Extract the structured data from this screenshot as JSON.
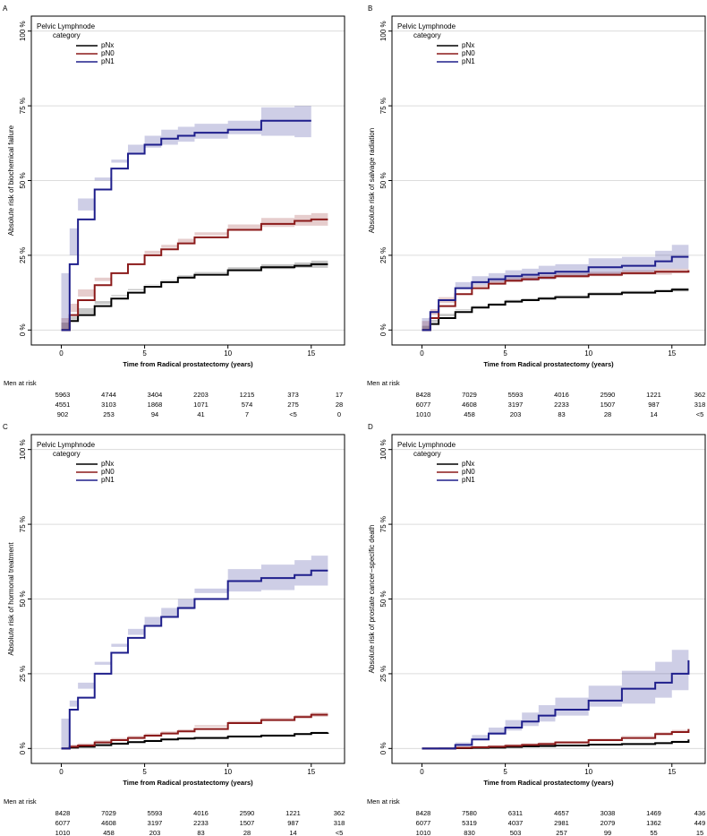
{
  "chart_data": [
    {
      "type": "line",
      "panel": "A",
      "ylabel": "Absolute risk of biochemical failure",
      "xlabel": "Time from Radical prostatectomy (years)",
      "legend_title": [
        "Pelvic Lymphnode",
        "category"
      ],
      "legend": "top-left",
      "grid": true,
      "step": true,
      "xlim": [
        -1.8,
        17
      ],
      "ylim": [
        -5,
        105
      ],
      "xticks": [
        0,
        5,
        10,
        15
      ],
      "yticks": [
        {
          "value": 0,
          "label": "0 %"
        },
        {
          "value": 25,
          "label": "25 %"
        },
        {
          "value": 50,
          "label": "50 %"
        },
        {
          "value": 75,
          "label": "75 %"
        },
        {
          "value": 100,
          "label": "100 %"
        }
      ],
      "x": [
        0,
        0.5,
        1,
        2,
        3,
        4,
        5,
        6,
        7,
        8,
        10,
        12,
        14,
        15,
        16
      ],
      "series": [
        {
          "name": "pNx",
          "color": "#000000",
          "values": [
            0,
            3,
            5,
            8,
            10.5,
            12.5,
            14.5,
            16,
            17.5,
            18.5,
            20,
            21,
            21.5,
            22,
            22
          ],
          "lower": [
            0,
            2.5,
            4.5,
            7.3,
            9.7,
            11.7,
            13.7,
            15.2,
            16.7,
            17.6,
            19,
            20,
            20.4,
            20.8,
            20.8
          ],
          "upper": [
            0,
            3.5,
            5.5,
            8.7,
            11.3,
            13.3,
            15.3,
            16.8,
            18.3,
            19.4,
            21,
            22,
            22.6,
            23.2,
            23.2
          ]
        },
        {
          "name": "pN0",
          "color": "#8b1a1a",
          "values": [
            0,
            5,
            10,
            15,
            19,
            22,
            25,
            27,
            29,
            31,
            33.5,
            35.5,
            36.5,
            37,
            37
          ],
          "lower": [
            0,
            4,
            8.8,
            13.6,
            17.5,
            20.5,
            23.5,
            25.5,
            27.5,
            29.3,
            31.7,
            33.5,
            34.5,
            34.9,
            34.9
          ],
          "upper": [
            0,
            6,
            11.2,
            16.4,
            20.5,
            23.5,
            26.5,
            28.5,
            30.5,
            32.7,
            35.3,
            37.5,
            38.5,
            39.1,
            39.1
          ]
        },
        {
          "name": "pN1",
          "color": "#1f1f8c",
          "values": [
            0,
            22,
            37,
            47,
            54,
            59,
            62,
            64,
            65,
            66,
            67,
            70,
            70,
            70,
            null
          ],
          "lower": [
            0,
            19,
            34,
            44,
            51,
            56,
            59,
            61,
            62,
            63,
            64,
            65.5,
            65,
            64.5,
            null
          ],
          "upper": [
            0,
            25,
            40,
            50,
            57,
            62,
            65,
            67,
            68,
            69,
            70,
            74.5,
            75,
            75.5,
            null
          ]
        }
      ],
      "risk_table": {
        "title": "Men at risk",
        "rows": [
          [
            5963,
            4744,
            3404,
            2203,
            1215,
            373,
            17
          ],
          [
            4551,
            3103,
            1868,
            1071,
            574,
            275,
            28
          ],
          [
            902,
            253,
            94,
            41,
            7,
            "<5",
            0
          ]
        ]
      }
    },
    {
      "type": "line",
      "panel": "B",
      "ylabel": "Absolute risk of salvage radiation",
      "xlabel": "Time from Radical prostatectomy (years)",
      "legend_title": [
        "Pelvic Lymphnode",
        "category"
      ],
      "legend": "top-left",
      "grid": true,
      "step": true,
      "xlim": [
        -1.8,
        17
      ],
      "ylim": [
        -5,
        105
      ],
      "xticks": [
        0,
        5,
        10,
        15
      ],
      "yticks": [
        {
          "value": 0,
          "label": "0 %"
        },
        {
          "value": 25,
          "label": "25 %"
        },
        {
          "value": 50,
          "label": "50 %"
        },
        {
          "value": 75,
          "label": "75 %"
        },
        {
          "value": 100,
          "label": "100 %"
        }
      ],
      "x": [
        0,
        0.5,
        1,
        2,
        3,
        4,
        5,
        6,
        7,
        8,
        10,
        12,
        14,
        15,
        16
      ],
      "series": [
        {
          "name": "pNx",
          "color": "#000000",
          "values": [
            0,
            2,
            4,
            6,
            7.5,
            8.5,
            9.5,
            10,
            10.5,
            11,
            12,
            12.5,
            13,
            13.5,
            13.5
          ],
          "lower": [
            0,
            1.4,
            3.4,
            5.4,
            6.9,
            7.9,
            8.9,
            9.4,
            9.9,
            10.4,
            11.4,
            11.9,
            12.4,
            12.9,
            12.9
          ],
          "upper": [
            0,
            2.6,
            4.6,
            6.6,
            8.1,
            9.1,
            10.1,
            10.6,
            11.1,
            11.6,
            12.6,
            13.1,
            13.6,
            14.1,
            14.1
          ]
        },
        {
          "name": "pN0",
          "color": "#8b1a1a",
          "values": [
            0,
            4,
            8,
            12,
            14,
            15.5,
            16.5,
            17,
            17.5,
            18,
            18.5,
            19,
            19.5,
            19.5,
            20
          ],
          "lower": [
            0,
            3,
            7,
            11,
            13,
            14.5,
            15.5,
            16,
            16.5,
            17,
            17.5,
            18,
            18.5,
            18.5,
            19
          ],
          "upper": [
            0,
            5,
            9,
            13,
            15,
            16.5,
            17.5,
            18,
            18.5,
            19,
            19.5,
            20,
            20.5,
            20.5,
            21
          ]
        },
        {
          "name": "pN1",
          "color": "#1f1f8c",
          "values": [
            0,
            6,
            10,
            14,
            16,
            17,
            18,
            18.5,
            19,
            19.5,
            21,
            21.5,
            23,
            24.5,
            24.5
          ],
          "lower": [
            0,
            4,
            8,
            12,
            14,
            15,
            16,
            16.5,
            16.5,
            17,
            18,
            18.5,
            19.5,
            20.5,
            20.5
          ],
          "upper": [
            0,
            8,
            12,
            16,
            18,
            19,
            20,
            20.5,
            21.5,
            22,
            24,
            24.5,
            26.5,
            28.5,
            28.5
          ]
        }
      ],
      "risk_table": {
        "title": "Men at risk",
        "rows": [
          [
            8428,
            7029,
            5593,
            4016,
            2590,
            1221,
            362
          ],
          [
            6077,
            4608,
            3197,
            2233,
            1507,
            987,
            318
          ],
          [
            1010,
            458,
            203,
            83,
            28,
            14,
            "<5"
          ]
        ]
      }
    },
    {
      "type": "line",
      "panel": "C",
      "ylabel": "Absolute risk of hormonal treatment",
      "xlabel": "Time from Radical prostatectomy (years)",
      "legend_title": [
        "Pelvic Lymphnode",
        "category"
      ],
      "legend": "top-left",
      "grid": true,
      "step": true,
      "xlim": [
        -1.8,
        17
      ],
      "ylim": [
        -5,
        105
      ],
      "xticks": [
        0,
        5,
        10,
        15
      ],
      "yticks": [
        {
          "value": 0,
          "label": "0 %"
        },
        {
          "value": 25,
          "label": "25 %"
        },
        {
          "value": 50,
          "label": "50 %"
        },
        {
          "value": 75,
          "label": "75 %"
        },
        {
          "value": 100,
          "label": "100 %"
        }
      ],
      "x": [
        0,
        0.5,
        1,
        2,
        3,
        4,
        5,
        6,
        7,
        8,
        10,
        12,
        14,
        15,
        16
      ],
      "series": [
        {
          "name": "pNx",
          "color": "#000000",
          "values": [
            0,
            0.3,
            0.6,
            1.1,
            1.6,
            2.1,
            2.5,
            3,
            3.3,
            3.5,
            4,
            4.3,
            4.8,
            5.2,
            5.3
          ],
          "lower": [
            0,
            0,
            0.2,
            0.7,
            1.2,
            1.7,
            2.1,
            2.6,
            2.9,
            3.1,
            3.6,
            3.9,
            4.4,
            4.8,
            4.9
          ],
          "upper": [
            0,
            0.7,
            1,
            1.5,
            2,
            2.5,
            2.9,
            3.4,
            3.7,
            3.9,
            4.4,
            4.7,
            5.2,
            5.6,
            5.7
          ]
        },
        {
          "name": "pN0",
          "color": "#8b1a1a",
          "values": [
            0,
            0.6,
            1,
            2,
            2.8,
            3.5,
            4.3,
            5,
            5.7,
            6.5,
            8.5,
            9.5,
            10.5,
            11.3,
            11.3
          ],
          "lower": [
            0,
            0,
            0.3,
            1.3,
            2.1,
            2.8,
            3.6,
            4.3,
            5,
            5.8,
            7.8,
            8.8,
            9.8,
            10.6,
            10.6
          ],
          "upper": [
            0,
            1.3,
            1.7,
            2.7,
            3.5,
            4.2,
            5,
            5.7,
            6.4,
            7.2,
            9.2,
            10.2,
            11.2,
            12,
            12
          ]
        },
        {
          "name": "pN1",
          "color": "#1f1f8c",
          "values": [
            0,
            13,
            17,
            25,
            32,
            37,
            41,
            44,
            47,
            50,
            56,
            57,
            58,
            59.5,
            59.5
          ],
          "lower": [
            0,
            10,
            14,
            22,
            29,
            34,
            38,
            41,
            44,
            46.5,
            52,
            52.5,
            53,
            54.5,
            54.5
          ],
          "upper": [
            0,
            16,
            20,
            28,
            35,
            40,
            44,
            47,
            50,
            53.5,
            60,
            61.5,
            63,
            64.5,
            64.5
          ]
        }
      ],
      "risk_table": {
        "title": "Men at risk",
        "rows": [
          [
            8428,
            7029,
            5593,
            4016,
            2590,
            1221,
            362
          ],
          [
            6077,
            4608,
            3197,
            2233,
            1507,
            987,
            318
          ],
          [
            1010,
            458,
            203,
            83,
            28,
            14,
            "<5"
          ]
        ]
      }
    },
    {
      "type": "line",
      "panel": "D",
      "ylabel": "Absolute risk of prostate cancer−specific death",
      "xlabel": "Time from Radical prostatectomy (years)",
      "legend_title": [
        "Pelvic Lymphnode",
        "category"
      ],
      "legend": "top-left",
      "grid": true,
      "step": true,
      "xlim": [
        -1.8,
        17
      ],
      "ylim": [
        -5,
        105
      ],
      "xticks": [
        0,
        5,
        10,
        15
      ],
      "yticks": [
        {
          "value": 0,
          "label": "0 %"
        },
        {
          "value": 25,
          "label": "25 %"
        },
        {
          "value": 50,
          "label": "50 %"
        },
        {
          "value": 75,
          "label": "75 %"
        },
        {
          "value": 100,
          "label": "100 %"
        }
      ],
      "x": [
        0,
        0.5,
        1,
        2,
        3,
        4,
        5,
        6,
        7,
        8,
        10,
        12,
        14,
        15,
        16
      ],
      "series": [
        {
          "name": "pNx",
          "color": "#000000",
          "values": [
            0,
            0,
            0,
            0.1,
            0.2,
            0.3,
            0.5,
            0.7,
            0.8,
            1,
            1.3,
            1.5,
            1.8,
            2.2,
            3
          ],
          "lower": [
            0,
            0,
            0,
            0,
            0,
            0,
            0.2,
            0.4,
            0.5,
            0.7,
            1,
            1.2,
            1.5,
            1.9,
            2.6
          ],
          "upper": [
            0,
            0,
            0,
            0.4,
            0.5,
            0.6,
            0.8,
            1,
            1.1,
            1.3,
            1.6,
            1.8,
            2.1,
            2.5,
            3.4
          ]
        },
        {
          "name": "pN0",
          "color": "#8b1a1a",
          "values": [
            0,
            0,
            0,
            0.2,
            0.4,
            0.6,
            0.9,
            1.2,
            1.5,
            2,
            2.8,
            3.5,
            4.8,
            5.5,
            6.5
          ],
          "lower": [
            0,
            0,
            0,
            0,
            0,
            0.1,
            0.4,
            0.7,
            1,
            1.5,
            2.3,
            3,
            4.2,
            4.8,
            5.7
          ],
          "upper": [
            0,
            0,
            0,
            0.7,
            0.9,
            1.1,
            1.4,
            1.7,
            2,
            2.5,
            3.3,
            4,
            5.4,
            6.2,
            7.3
          ]
        },
        {
          "name": "pN1",
          "color": "#1f1f8c",
          "values": [
            0,
            0,
            0,
            1.2,
            3,
            5,
            7,
            9,
            11,
            13,
            16,
            20,
            22,
            25,
            29.5
          ],
          "lower": [
            0,
            0,
            0,
            0.4,
            1.5,
            3,
            4.5,
            6,
            7.5,
            9,
            11,
            14,
            15,
            17,
            19.5
          ],
          "upper": [
            0,
            0,
            0,
            2,
            4.5,
            7,
            9.5,
            12,
            14.5,
            17,
            21,
            26,
            29,
            33,
            39.5
          ]
        }
      ],
      "risk_table": {
        "title": "Men at risk",
        "rows": [
          [
            8428,
            7580,
            6311,
            4657,
            3038,
            1469,
            436
          ],
          [
            6077,
            5319,
            4037,
            2981,
            2079,
            1362,
            449
          ],
          [
            1010,
            830,
            503,
            257,
            99,
            55,
            15
          ]
        ]
      }
    }
  ]
}
